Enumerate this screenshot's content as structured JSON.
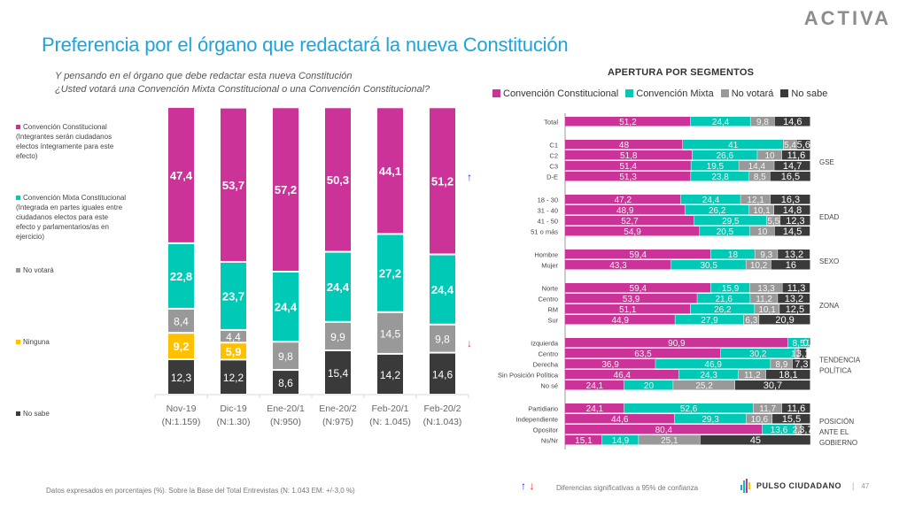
{
  "header": {
    "title": "Preferencia por el órgano que redactará la nueva Constitución",
    "logo": "ACTIVA",
    "question_line1": "Y pensando en el órgano que debe redactar esta nueva Constitución",
    "question_line2": "¿Usted votará una Convención Mixta Constitucional o una Convención Constitucional?"
  },
  "colors": {
    "convencion_constitucional": "#cc3399",
    "convencion_mixta": "#00c9b5",
    "no_votara": "#999999",
    "ninguna": "#ffc000",
    "no_sabe": "#3a3a3a",
    "title": "#1ea4dc",
    "arrow_up": "#1a1aff",
    "arrow_down": "#ff2020"
  },
  "left_legend": [
    {
      "key": "convencion_constitucional",
      "lines": [
        "Convención Constitucional",
        "(Integrantes serán ciudadanos",
        "electos íntegramente para este",
        "efecto)"
      ]
    },
    {
      "key": "convencion_mixta",
      "lines": [
        "Convención Mixta Constitucional",
        "(Integrada en partes iguales entre",
        "ciudadanos electos para este",
        "efecto y  parlamentarios/as en",
        "ejercicio)"
      ]
    },
    {
      "key": "no_votara",
      "lines": [
        "No votará"
      ]
    },
    {
      "key": "ninguna",
      "lines": [
        "Ninguna"
      ]
    },
    {
      "key": "no_sabe",
      "lines": [
        "No sabe"
      ]
    }
  ],
  "chart_data": [
    {
      "type": "bar",
      "stacked": true,
      "orientation": "vertical",
      "title": "Preferencia por el órgano que redactará la nueva Constitución",
      "categories": [
        "Nov-19",
        "Dic-19",
        "Ene-20/1",
        "Ene-20/2",
        "Feb-20/1",
        "Feb-20/2"
      ],
      "category_sublabels": [
        "(N:1.159)",
        "(N:1.30)",
        "(N:950)",
        "(N:975)",
        "(N: 1.045)",
        "(N:1.043)"
      ],
      "series": [
        {
          "name": "No sabe",
          "key": "no_sabe",
          "values": [
            12.3,
            12.2,
            8.6,
            15.4,
            14.2,
            14.6
          ]
        },
        {
          "name": "Ninguna",
          "key": "ninguna",
          "values": [
            9.2,
            5.9,
            null,
            null,
            null,
            null
          ]
        },
        {
          "name": "No votará",
          "key": "no_votara",
          "values": [
            8.4,
            4.4,
            9.8,
            9.9,
            14.5,
            9.8
          ]
        },
        {
          "name": "Convención Mixta Constitucional",
          "key": "convencion_mixta",
          "values": [
            22.8,
            23.7,
            24.4,
            24.4,
            27.2,
            24.4
          ]
        },
        {
          "name": "Convención Constitucional",
          "key": "convencion_constitucional",
          "values": [
            47.4,
            53.7,
            57.2,
            50.3,
            44.1,
            51.2
          ]
        }
      ],
      "value_labels_format": "comma-decimal",
      "significance_markers": [
        {
          "category": "Feb-20/2",
          "series": "Convención Constitucional",
          "direction": "up"
        },
        {
          "category": "Feb-20/2",
          "series": "No votará",
          "direction": "down"
        }
      ],
      "ylim": [
        0,
        100
      ],
      "grid": false,
      "legend": "left"
    },
    {
      "type": "bar",
      "stacked": true,
      "orientation": "horizontal",
      "title": "APERTURA POR SEGMENTOS",
      "legend": "top",
      "xlim": [
        0,
        100
      ],
      "series_names": [
        "Convención Constitucional",
        "Convención  Mixta",
        "No votará",
        "No sabe"
      ],
      "series_keys": [
        "convencion_constitucional",
        "convencion_mixta",
        "no_votara",
        "no_sabe"
      ],
      "groups": [
        {
          "label": "",
          "rows": [
            {
              "label": "Total",
              "values": [
                51.2,
                24.4,
                9.8,
                14.6
              ]
            }
          ]
        },
        {
          "label": "GSE",
          "rows": [
            {
              "label": "C1",
              "values": [
                48,
                41,
                5.4,
                5.6
              ]
            },
            {
              "label": "C2",
              "values": [
                51.8,
                26.6,
                10,
                11.6
              ]
            },
            {
              "label": "C3",
              "values": [
                51.4,
                19.5,
                14.4,
                14.7
              ]
            },
            {
              "label": "D-E",
              "values": [
                51.3,
                23.8,
                8.5,
                16.5
              ]
            }
          ]
        },
        {
          "label": "EDAD",
          "rows": [
            {
              "label": "18 - 30",
              "values": [
                47.2,
                24.4,
                12.1,
                16.3
              ]
            },
            {
              "label": "31 - 40",
              "values": [
                48.9,
                26.2,
                10.1,
                14.8
              ]
            },
            {
              "label": "41 - 50",
              "values": [
                52.7,
                29.5,
                5.5,
                12.3
              ]
            },
            {
              "label": "51 o más",
              "values": [
                54.9,
                20.5,
                10,
                14.5
              ]
            }
          ]
        },
        {
          "label": "SEXO",
          "rows": [
            {
              "label": "Hombre",
              "values": [
                59.4,
                18,
                9.3,
                13.2
              ]
            },
            {
              "label": "Mujer",
              "values": [
                43.3,
                30.5,
                10.2,
                16
              ]
            }
          ]
        },
        {
          "label": "ZONA",
          "rows": [
            {
              "label": "Norte",
              "values": [
                59.4,
                15.9,
                13.3,
                11.3
              ]
            },
            {
              "label": "Centro",
              "values": [
                53.9,
                21.6,
                11.2,
                13.2
              ]
            },
            {
              "label": "RM",
              "values": [
                51.1,
                26.2,
                10.1,
                12.5
              ]
            },
            {
              "label": "Sur",
              "values": [
                44.9,
                27.9,
                6.3,
                20.9
              ]
            }
          ]
        },
        {
          "label": "TENDENCIA POLÍTICA",
          "rows": [
            {
              "label": "Izquierda",
              "values": [
                90.9,
                8.5,
                0,
                0.6
              ]
            },
            {
              "label": "Centro",
              "values": [
                63.5,
                30.2,
                1.7,
                3.1
              ]
            },
            {
              "label": "Derecha",
              "values": [
                36.9,
                46.9,
                8.9,
                7.3
              ]
            },
            {
              "label": "Sin Posición Política",
              "values": [
                46.4,
                24.3,
                11.2,
                18.1
              ]
            },
            {
              "label": "No sé",
              "values": [
                24.1,
                20,
                25.2,
                30.7
              ]
            }
          ]
        },
        {
          "label": "POSICIÓN ANTE EL GOBIERNO",
          "rows": [
            {
              "label": "Partidiario",
              "values": [
                24.1,
                52.6,
                11.7,
                11.6
              ]
            },
            {
              "label": "Independiente",
              "values": [
                44.6,
                29.3,
                10.6,
                15.5
              ]
            },
            {
              "label": "Opositor",
              "values": [
                80.4,
                13.6,
                2.3,
                3.7
              ]
            },
            {
              "label": "Ns/Nr",
              "values": [
                15.1,
                14.9,
                25.1,
                45
              ]
            }
          ]
        }
      ]
    }
  ],
  "footer": {
    "note": "Datos expresados en porcentajes (%). Sobre la Base del Total Entrevistas (N: 1.043  EM: +/-3,0 %)",
    "significance_note": "Diferencias  significativas a 95% de confianza",
    "brand": "PULSO CIUDADANO",
    "separator": "|",
    "page": "47"
  }
}
